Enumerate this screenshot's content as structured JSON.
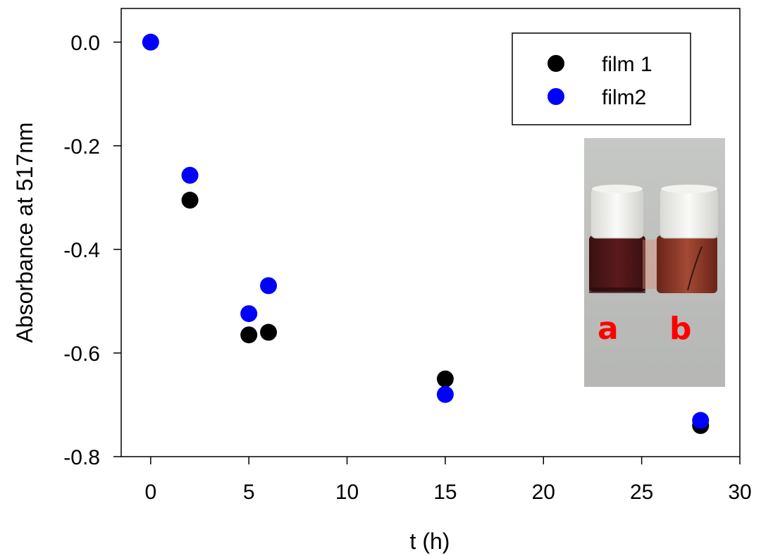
{
  "chart_data": {
    "type": "scatter",
    "xlabel": "t (h)",
    "ylabel": "Absorbance at 517nm",
    "xlim": [
      -1.5,
      30
    ],
    "ylim": [
      -0.8,
      0.065
    ],
    "xticks": [
      0,
      5,
      10,
      15,
      20,
      25,
      30
    ],
    "yticks": [
      0.0,
      -0.2,
      -0.4,
      -0.6,
      -0.8
    ],
    "xtick_labels": [
      "0",
      "5",
      "10",
      "15",
      "20",
      "25",
      "30"
    ],
    "ytick_labels": [
      "0.0",
      "-0.2",
      "-0.4",
      "-0.6",
      "-0.8"
    ],
    "grid": false,
    "legend_position": "top-right",
    "series": [
      {
        "name": "film 1",
        "color": "#000000",
        "x": [
          2,
          5,
          6,
          15,
          28
        ],
        "y": [
          -0.305,
          -0.565,
          -0.56,
          -0.65,
          -0.74
        ]
      },
      {
        "name": "film2",
        "color": "#0000ff",
        "x": [
          0,
          2,
          5,
          6,
          15,
          28
        ],
        "y": [
          0.0,
          -0.257,
          -0.524,
          -0.47,
          -0.68,
          -0.73
        ]
      }
    ],
    "inset": {
      "description_icon": "photo-of-two-vials",
      "labels": [
        "a",
        "b"
      ],
      "label_color": "#ff0000"
    }
  }
}
